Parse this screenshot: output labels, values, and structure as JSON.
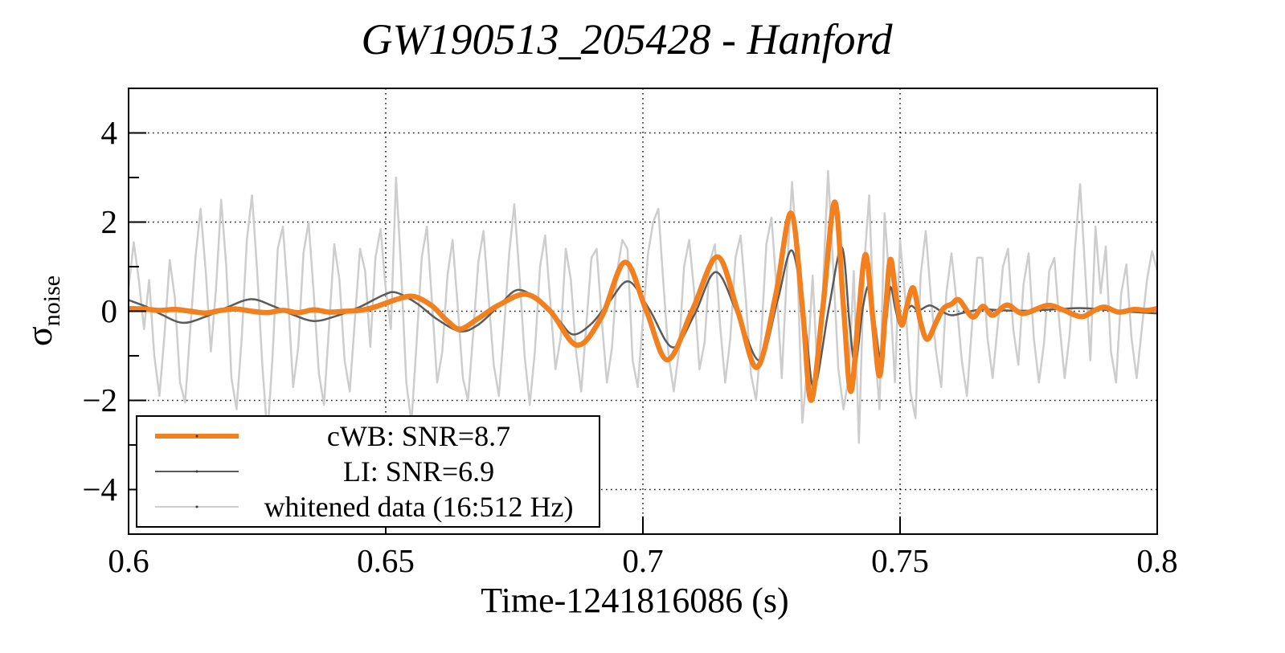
{
  "chart_data": {
    "type": "line",
    "title": "GW190513_205428 - Hanford",
    "xlabel": "Time-1241816086 (s)",
    "ylabel": "σ_noise",
    "ylabel_base": "σ",
    "ylabel_subscript": "noise",
    "xlim": [
      0.6,
      0.8
    ],
    "ylim": [
      -5,
      5
    ],
    "x_ticks": {
      "values": [
        0.6,
        0.65,
        0.7,
        0.75,
        0.8
      ],
      "labels": [
        "0.6",
        "0.65",
        "0.7",
        "0.75",
        "0.8"
      ]
    },
    "y_ticks": {
      "values": [
        4,
        2,
        0,
        -2,
        -4
      ],
      "labels": [
        "4",
        "2",
        "0",
        "−2",
        "−4"
      ],
      "minor": [
        3,
        1,
        -1,
        -3
      ]
    },
    "grid": {
      "x_values": [
        0.65,
        0.7,
        0.75
      ],
      "y_values": [
        4,
        2,
        0,
        -2,
        -4
      ],
      "style": "dotted",
      "color": "#000000"
    },
    "legend": {
      "position": "bottom-left",
      "border": true,
      "order": [
        "cWB",
        "LI",
        "whitened"
      ]
    },
    "series": [
      {
        "name": "whitened",
        "label": "whitened data (16:512 Hz)",
        "color": "#cdcdcd",
        "line_width": 2.5,
        "draw": "polyline",
        "x_start": 0.6,
        "x_step": 0.001,
        "values": [
          0.5,
          1.55,
          0.7,
          -0.4,
          0.7,
          -1.0,
          -1.9,
          -0.5,
          1.15,
          0.3,
          -1.6,
          -2.05,
          -0.4,
          1.2,
          2.3,
          0.9,
          -0.9,
          0.5,
          2.5,
          1.0,
          -1.5,
          -2.2,
          -0.6,
          1.6,
          2.6,
          0.9,
          -1.2,
          -2.8,
          -1.0,
          1.4,
          1.9,
          0.3,
          -1.7,
          -0.8,
          1.3,
          2.0,
          0.4,
          -1.4,
          -2.1,
          -0.3,
          1.5,
          0.7,
          -1.1,
          -1.8,
          -0.2,
          1.4,
          0.9,
          -0.8,
          1.2,
          1.85,
          0.5,
          -0.4,
          3.0,
          0.9,
          -1.6,
          -2.5,
          -0.7,
          1.2,
          1.9,
          0.2,
          -1.6,
          -0.9,
          0.8,
          1.6,
          0.1,
          -1.5,
          -2.0,
          -0.5,
          1.1,
          1.8,
          0.3,
          -1.2,
          -1.9,
          -0.4,
          1.3,
          2.4,
          0.8,
          -1.0,
          -2.1,
          -0.9,
          1.0,
          1.7,
          0.2,
          -1.3,
          -0.6,
          1.4,
          0.7,
          -0.9,
          -1.8,
          -0.3,
          1.2,
          1.4,
          -0.2,
          -1.6,
          -0.8,
          0.9,
          1.6,
          1.4,
          -1.1,
          -1.7,
          -0.2,
          1.3,
          2.0,
          2.3,
          0.6,
          -1.0,
          -1.8,
          -0.9,
          1.0,
          1.6,
          0.4,
          -1.3,
          -0.7,
          1.1,
          1.5,
          -0.3,
          -1.6,
          -0.6,
          1.2,
          1.7,
          0.3,
          -1.4,
          -2.0,
          -0.6,
          1.5,
          2.1,
          0.5,
          -1.5,
          0.9,
          2.9,
          1.2,
          -2.5,
          -1.2,
          0.8,
          -1.5,
          0.5,
          3.15,
          1.0,
          -1.3,
          -2.2,
          -1.5,
          0.9,
          -2.95,
          1.0,
          2.6,
          -0.6,
          -2.2,
          2.2,
          0.5,
          -1.6,
          1.6,
          0.3,
          -1.8,
          -2.4,
          0.8,
          1.8,
          0.3,
          -0.9,
          -1.7,
          0.4,
          1.3,
          0.2,
          -1.1,
          -1.9,
          -0.3,
          1.2,
          1.2,
          -0.6,
          -1.5,
          -0.3,
          1.0,
          1.4,
          -0.4,
          -1.2,
          0.6,
          1.3,
          -0.6,
          -1.6,
          -0.7,
          0.9,
          1.2,
          -0.3,
          -1.5,
          -0.5,
          1.4,
          2.85,
          0.9,
          -1.1,
          1.9,
          0.4,
          1.45,
          -0.9,
          -1.6,
          0.4,
          1.05,
          -0.6,
          -1.5,
          -0.4,
          0.7,
          1.35,
          0.9
        ]
      },
      {
        "name": "LI",
        "label": "LI: SNR=6.9",
        "color": "#5a5a5a",
        "line_width": 2.5,
        "draw": "smooth",
        "points": [
          [
            0.6,
            0.25
          ],
          [
            0.6035,
            0.1
          ],
          [
            0.6065,
            -0.08
          ],
          [
            0.6106,
            -0.26
          ],
          [
            0.615,
            -0.12
          ],
          [
            0.619,
            0.08
          ],
          [
            0.6238,
            0.27
          ],
          [
            0.628,
            0.12
          ],
          [
            0.632,
            -0.08
          ],
          [
            0.636,
            -0.22
          ],
          [
            0.64,
            -0.12
          ],
          [
            0.645,
            0.1
          ],
          [
            0.6495,
            0.36
          ],
          [
            0.652,
            0.42
          ],
          [
            0.656,
            0.18
          ],
          [
            0.66,
            -0.18
          ],
          [
            0.6645,
            -0.45
          ],
          [
            0.668,
            -0.3
          ],
          [
            0.672,
            0.12
          ],
          [
            0.6757,
            0.48
          ],
          [
            0.68,
            0.22
          ],
          [
            0.6835,
            -0.18
          ],
          [
            0.6864,
            -0.52
          ],
          [
            0.69,
            -0.28
          ],
          [
            0.6935,
            0.22
          ],
          [
            0.6972,
            0.67
          ],
          [
            0.7012,
            0.05
          ],
          [
            0.7058,
            -0.81
          ],
          [
            0.71,
            -0.08
          ],
          [
            0.7142,
            0.88
          ],
          [
            0.7186,
            -0.12
          ],
          [
            0.7228,
            -1.1
          ],
          [
            0.7262,
            0.25
          ],
          [
            0.729,
            1.36
          ],
          [
            0.7315,
            -0.25
          ],
          [
            0.7333,
            -1.72
          ],
          [
            0.7362,
            0.1
          ],
          [
            0.7387,
            1.43
          ],
          [
            0.7402,
            -0.3
          ],
          [
            0.7413,
            -1.18
          ],
          [
            0.7428,
            0.1
          ],
          [
            0.744,
            0.55
          ],
          [
            0.7452,
            -0.35
          ],
          [
            0.7462,
            -1.04
          ],
          [
            0.7473,
            -0.25
          ],
          [
            0.7481,
            0.54
          ],
          [
            0.7491,
            0.05
          ],
          [
            0.75,
            -0.3
          ],
          [
            0.7512,
            -0.02
          ],
          [
            0.7522,
            0.12
          ],
          [
            0.7536,
            0.02
          ],
          [
            0.7558,
            0.13
          ],
          [
            0.758,
            0.0
          ],
          [
            0.76,
            -0.09
          ],
          [
            0.7625,
            -0.03
          ],
          [
            0.766,
            0.04
          ],
          [
            0.77,
            0.02
          ],
          [
            0.774,
            0.01
          ],
          [
            0.778,
            0.03
          ],
          [
            0.7845,
            0.07
          ],
          [
            0.7885,
            0.05
          ],
          [
            0.792,
            0.0
          ],
          [
            0.796,
            -0.02
          ],
          [
            0.8,
            -0.05
          ]
        ]
      },
      {
        "name": "cWB",
        "label": "cWB: SNR=8.7",
        "color": "#f2801e",
        "line_width": 6.5,
        "draw": "smooth",
        "points": [
          [
            0.6,
            0.06
          ],
          [
            0.603,
            0.05
          ],
          [
            0.606,
            0.02
          ],
          [
            0.609,
            0.04
          ],
          [
            0.612,
            0.0
          ],
          [
            0.615,
            -0.04
          ],
          [
            0.618,
            0.02
          ],
          [
            0.621,
            0.05
          ],
          [
            0.624,
            0.0
          ],
          [
            0.627,
            -0.03
          ],
          [
            0.63,
            0.02
          ],
          [
            0.633,
            -0.03
          ],
          [
            0.636,
            0.03
          ],
          [
            0.639,
            -0.02
          ],
          [
            0.642,
            0.0
          ],
          [
            0.645,
            0.02
          ],
          [
            0.648,
            0.1
          ],
          [
            0.6525,
            0.28
          ],
          [
            0.6555,
            0.33
          ],
          [
            0.659,
            0.12
          ],
          [
            0.662,
            -0.22
          ],
          [
            0.6645,
            -0.4
          ],
          [
            0.668,
            -0.16
          ],
          [
            0.672,
            0.14
          ],
          [
            0.6773,
            0.38
          ],
          [
            0.682,
            0.0
          ],
          [
            0.6872,
            -0.76
          ],
          [
            0.692,
            -0.12
          ],
          [
            0.6965,
            1.1
          ],
          [
            0.7007,
            0.0
          ],
          [
            0.7048,
            -1.09
          ],
          [
            0.7097,
            0.05
          ],
          [
            0.7145,
            1.22
          ],
          [
            0.7185,
            -0.02
          ],
          [
            0.7222,
            -1.26
          ],
          [
            0.7258,
            0.35
          ],
          [
            0.7288,
            2.2
          ],
          [
            0.731,
            0.1
          ],
          [
            0.7327,
            -2.0
          ],
          [
            0.735,
            0.1
          ],
          [
            0.7373,
            2.45
          ],
          [
            0.739,
            0.1
          ],
          [
            0.7404,
            -1.8
          ],
          [
            0.7419,
            -0.1
          ],
          [
            0.7433,
            1.27
          ],
          [
            0.7447,
            -0.15
          ],
          [
            0.746,
            -1.45
          ],
          [
            0.7471,
            -0.1
          ],
          [
            0.7481,
            1.16
          ],
          [
            0.7492,
            0.35
          ],
          [
            0.7503,
            -0.31
          ],
          [
            0.7514,
            0.15
          ],
          [
            0.7526,
            0.52
          ],
          [
            0.754,
            -0.25
          ],
          [
            0.7553,
            -0.63
          ],
          [
            0.757,
            -0.25
          ],
          [
            0.7584,
            0.06
          ],
          [
            0.76,
            0.16
          ],
          [
            0.7615,
            0.25
          ],
          [
            0.7641,
            -0.13
          ],
          [
            0.7661,
            0.11
          ],
          [
            0.768,
            -0.09
          ],
          [
            0.7708,
            0.14
          ],
          [
            0.7739,
            -0.05
          ],
          [
            0.7785,
            0.13
          ],
          [
            0.7815,
            0.04
          ],
          [
            0.7852,
            -0.12
          ],
          [
            0.788,
            0.03
          ],
          [
            0.7899,
            0.09
          ],
          [
            0.7925,
            -0.02
          ],
          [
            0.7955,
            0.04
          ],
          [
            0.798,
            0.02
          ],
          [
            0.8,
            0.06
          ]
        ]
      }
    ]
  }
}
